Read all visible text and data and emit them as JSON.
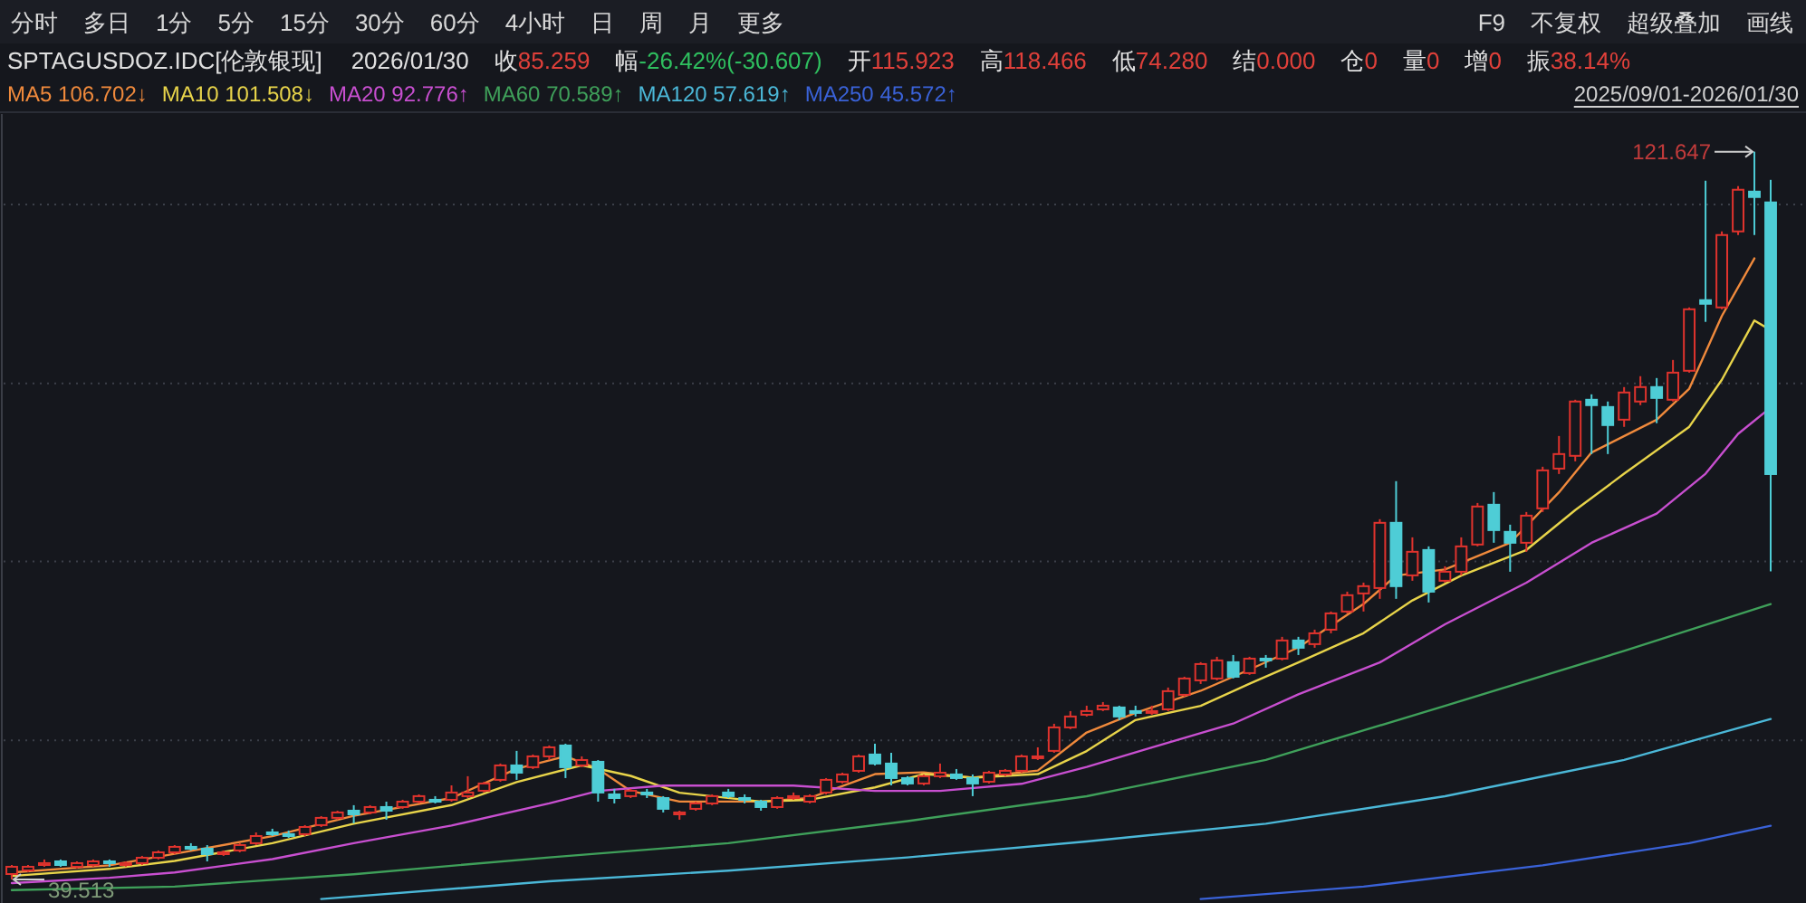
{
  "chart_data": {
    "type": "candlestick",
    "title": "SPTAGUSDOZ.IDC[伦敦银现]",
    "subtitle": "2026/01/30 收85.259 幅-26.42%(-30.607) 开115.923 高118.466 低74.280 结0.000 仓0 量0 增0 振38.14%",
    "annotations": [
      "分时 多日 1分 5分 15分 30分 60分 4小时 日 周 月 更多",
      "F9 不复权 超级叠加 画线",
      "2025/09/01-2026/01/30",
      "121.647",
      "39.513"
    ],
    "categories": [
      null,
      null,
      null,
      null,
      null,
      null,
      null,
      null,
      null,
      null,
      null,
      null,
      null,
      null,
      null,
      null,
      null,
      null,
      null,
      null,
      null,
      null,
      null,
      null,
      null,
      null,
      null,
      null,
      null,
      null,
      null,
      null,
      null,
      null,
      null,
      null,
      null,
      null,
      null,
      null,
      null,
      null,
      null,
      null,
      null,
      null,
      null,
      null,
      null,
      null,
      null,
      null,
      null,
      null,
      null,
      null,
      null,
      null,
      null,
      null,
      null,
      null,
      null,
      null,
      null,
      null,
      null,
      null,
      null,
      null,
      null,
      null,
      null,
      null,
      null,
      null,
      null,
      null,
      null,
      null,
      null,
      null,
      null,
      null,
      null,
      null,
      null,
      null,
      null,
      null,
      null,
      null,
      null,
      null,
      null,
      null,
      null,
      null,
      null,
      null,
      null,
      null,
      null,
      null,
      null,
      null,
      null,
      null,
      null
    ],
    "ohlc": [
      [
        40.12,
        41.14,
        39.513,
        40.94
      ],
      [
        40.53,
        41.14,
        40.33,
        40.94
      ],
      [
        41.14,
        41.76,
        40.94,
        41.35
      ],
      [
        41.55,
        41.76,
        40.94,
        41.14
      ],
      [
        40.94,
        41.55,
        40.74,
        41.35
      ],
      [
        41.14,
        41.76,
        40.94,
        41.55
      ],
      [
        41.55,
        41.76,
        40.94,
        41.35
      ],
      [
        41.14,
        41.55,
        40.94,
        41.35
      ],
      [
        41.35,
        42.17,
        41.14,
        41.96
      ],
      [
        41.96,
        42.78,
        41.76,
        42.57
      ],
      [
        42.57,
        43.39,
        42.37,
        43.19
      ],
      [
        43.19,
        43.6,
        42.78,
        42.98
      ],
      [
        42.98,
        43.39,
        41.55,
        42.37
      ],
      [
        42.37,
        42.78,
        42.17,
        42.57
      ],
      [
        42.78,
        43.6,
        42.57,
        43.39
      ],
      [
        43.6,
        44.82,
        43.39,
        44.41
      ],
      [
        44.82,
        45.23,
        44.41,
        44.62
      ],
      [
        44.62,
        45.03,
        44.21,
        44.41
      ],
      [
        44.62,
        45.64,
        44.41,
        45.43
      ],
      [
        45.64,
        46.66,
        45.43,
        46.46
      ],
      [
        46.46,
        47.27,
        46.25,
        47.07
      ],
      [
        47.27,
        47.89,
        45.84,
        46.86
      ],
      [
        47.07,
        47.89,
        46.86,
        47.68
      ],
      [
        47.68,
        48.29,
        46.25,
        47.27
      ],
      [
        47.68,
        48.5,
        47.48,
        48.29
      ],
      [
        48.29,
        49.11,
        48.09,
        48.91
      ],
      [
        48.5,
        48.91,
        48.09,
        48.29
      ],
      [
        48.5,
        50.13,
        48.29,
        49.32
      ],
      [
        48.91,
        51.16,
        48.7,
        49.32
      ],
      [
        49.52,
        50.54,
        49.32,
        50.34
      ],
      [
        50.75,
        52.59,
        50.54,
        52.38
      ],
      [
        52.38,
        54.02,
        50.75,
        51.56
      ],
      [
        52.18,
        53.61,
        51.97,
        53.4
      ],
      [
        53.4,
        54.63,
        52.99,
        54.42
      ],
      [
        54.63,
        54.83,
        50.95,
        52.18
      ],
      [
        52.38,
        53.4,
        52.18,
        52.99
      ],
      [
        52.79,
        52.99,
        48.29,
        49.32
      ],
      [
        49.11,
        49.73,
        48.09,
        48.7
      ],
      [
        48.91,
        49.73,
        48.7,
        49.52
      ],
      [
        49.32,
        49.73,
        48.7,
        49.11
      ],
      [
        48.7,
        48.91,
        47.07,
        47.48
      ],
      [
        46.86,
        47.27,
        46.25,
        47.07
      ],
      [
        47.48,
        48.29,
        47.27,
        48.09
      ],
      [
        48.09,
        49.11,
        47.89,
        48.91
      ],
      [
        49.32,
        49.73,
        48.7,
        48.91
      ],
      [
        48.7,
        49.11,
        48.09,
        48.5
      ],
      [
        48.29,
        48.5,
        47.27,
        47.68
      ],
      [
        47.68,
        48.91,
        47.48,
        48.7
      ],
      [
        48.7,
        49.32,
        48.5,
        48.91
      ],
      [
        48.29,
        49.11,
        48.09,
        48.91
      ],
      [
        49.32,
        50.95,
        49.11,
        50.75
      ],
      [
        50.54,
        51.56,
        50.34,
        51.36
      ],
      [
        51.77,
        53.61,
        51.56,
        53.4
      ],
      [
        53.61,
        54.83,
        52.38,
        52.59
      ],
      [
        52.59,
        53.81,
        50.13,
        50.95
      ],
      [
        50.95,
        51.16,
        50.13,
        50.34
      ],
      [
        50.34,
        51.36,
        50.13,
        51.16
      ],
      [
        51.16,
        52.59,
        50.95,
        51.56
      ],
      [
        51.36,
        51.97,
        50.75,
        50.95
      ],
      [
        50.95,
        51.36,
        48.91,
        50.34
      ],
      [
        50.54,
        51.77,
        50.34,
        51.56
      ],
      [
        51.36,
        51.97,
        51.16,
        51.77
      ],
      [
        51.77,
        53.61,
        51.56,
        53.4
      ],
      [
        53.2,
        54.42,
        52.99,
        53.4
      ],
      [
        54.02,
        57.08,
        53.81,
        56.67
      ],
      [
        56.67,
        58.51,
        56.47,
        57.9
      ],
      [
        58.1,
        59.12,
        57.9,
        58.51
      ],
      [
        58.71,
        59.53,
        58.51,
        59.12
      ],
      [
        58.92,
        59.12,
        57.49,
        57.9
      ],
      [
        58.51,
        59.12,
        57.9,
        58.31
      ],
      [
        58.31,
        59.12,
        58.1,
        58.51
      ],
      [
        58.71,
        61.17,
        58.51,
        60.76
      ],
      [
        60.35,
        62.39,
        60.14,
        62.19
      ],
      [
        61.98,
        64.03,
        61.57,
        63.82
      ],
      [
        62.19,
        64.64,
        61.98,
        64.23
      ],
      [
        64.03,
        64.84,
        62.19,
        62.39
      ],
      [
        62.8,
        64.64,
        62.6,
        64.43
      ],
      [
        64.43,
        64.84,
        63.41,
        64.23
      ],
      [
        64.43,
        66.89,
        64.23,
        66.48
      ],
      [
        66.48,
        66.89,
        64.84,
        65.66
      ],
      [
        66.07,
        67.7,
        65.66,
        67.29
      ],
      [
        67.7,
        69.75,
        67.29,
        69.54
      ],
      [
        69.75,
        71.99,
        69.54,
        71.59
      ],
      [
        71.79,
        73.01,
        69.75,
        72.61
      ],
      [
        72.4,
        80.17,
        71.18,
        79.76
      ],
      [
        79.76,
        84.46,
        71.18,
        72.61
      ],
      [
        73.83,
        78.12,
        73.22,
        76.49
      ],
      [
        76.69,
        77.1,
        70.77,
        71.99
      ],
      [
        73.22,
        74.85,
        73.01,
        74.24
      ],
      [
        74.24,
        78.12,
        73.83,
        77.1
      ],
      [
        77.31,
        82.0,
        77.1,
        81.6
      ],
      [
        81.8,
        83.23,
        77.51,
        78.94
      ],
      [
        78.74,
        79.55,
        74.24,
        77.51
      ],
      [
        77.51,
        80.98,
        76.49,
        80.57
      ],
      [
        81.39,
        86.09,
        80.98,
        85.68
      ],
      [
        85.88,
        89.56,
        85.27,
        87.52
      ],
      [
        87.32,
        93.65,
        86.7,
        93.45
      ],
      [
        93.65,
        94.26,
        87.52,
        93.04
      ],
      [
        92.83,
        93.45,
        87.52,
        90.79
      ],
      [
        91.4,
        95.08,
        90.59,
        94.47
      ],
      [
        93.45,
        96.31,
        93.04,
        95.08
      ],
      [
        95.08,
        96.1,
        91.0,
        93.85
      ],
      [
        93.65,
        98.14,
        93.45,
        96.71
      ],
      [
        96.92,
        104.07,
        96.71,
        103.86
      ],
      [
        104.89,
        118.37,
        102.44,
        104.48
      ],
      [
        104.07,
        112.65,
        103.86,
        112.24
      ],
      [
        112.65,
        117.76,
        112.24,
        117.35
      ],
      [
        117.14,
        121.647,
        112.24,
        116.53
      ],
      [
        115.923,
        118.466,
        74.28,
        85.259
      ]
    ],
    "series": [
      {
        "name": "MA5 106.702↓",
        "type": "line",
        "color": "#f08a3c",
        "values": [
          40.3,
          null,
          null,
          null,
          null,
          null,
          41.1,
          null,
          null,
          null,
          42.4,
          null,
          null,
          null,
          null,
          null,
          44.4,
          null,
          null,
          null,
          null,
          46.7,
          null,
          null,
          null,
          null,
          null,
          48.7,
          null,
          null,
          null,
          52.0,
          null,
          null,
          53.4,
          null,
          52.0,
          null,
          49.5,
          null,
          null,
          48.3,
          null,
          null,
          null,
          null,
          48.3,
          null,
          null,
          48.7,
          null,
          null,
          null,
          51.4,
          null,
          null,
          51.6,
          null,
          null,
          51.0,
          null,
          null,
          null,
          51.8,
          null,
          null,
          56.1,
          null,
          null,
          58.3,
          null,
          null,
          null,
          60.8,
          null,
          null,
          63.2,
          null,
          null,
          65.7,
          null,
          null,
          null,
          70.6,
          null,
          73.8,
          null,
          null,
          74.5,
          null,
          null,
          null,
          77.5,
          null,
          null,
          83.2,
          null,
          87.7,
          null,
          null,
          null,
          91.4,
          null,
          94.9,
          null,
          103.1,
          null,
          109.6,
          null
        ]
      },
      {
        "name": "MA10 101.508↓",
        "type": "line",
        "color": "#e8d44a",
        "values": [
          39.9,
          null,
          null,
          null,
          null,
          null,
          40.7,
          null,
          null,
          null,
          41.6,
          null,
          null,
          null,
          null,
          null,
          43.6,
          null,
          null,
          null,
          null,
          45.8,
          null,
          null,
          null,
          null,
          null,
          47.9,
          null,
          null,
          null,
          50.5,
          null,
          null,
          null,
          52.4,
          null,
          null,
          51.2,
          null,
          null,
          49.3,
          null,
          null,
          null,
          null,
          48.3,
          null,
          null,
          48.5,
          null,
          null,
          null,
          49.9,
          null,
          null,
          51.4,
          null,
          null,
          51.0,
          null,
          null,
          null,
          51.4,
          null,
          null,
          54.0,
          null,
          null,
          57.5,
          null,
          null,
          null,
          59.1,
          null,
          null,
          61.6,
          null,
          null,
          64.0,
          null,
          null,
          null,
          67.3,
          null,
          null,
          71.0,
          null,
          null,
          73.8,
          null,
          null,
          null,
          76.7,
          null,
          null,
          81.2,
          null,
          null,
          85.3,
          null,
          null,
          null,
          90.6,
          null,
          95.9,
          null,
          102.6,
          101.508
        ]
      },
      {
        "name": "MA20 92.776↑",
        "type": "line",
        "color": "#c84fd0",
        "values": [
          39.1,
          null,
          null,
          null,
          null,
          null,
          39.7,
          null,
          null,
          null,
          40.3,
          null,
          null,
          null,
          null,
          null,
          41.8,
          null,
          null,
          null,
          null,
          43.6,
          null,
          null,
          null,
          null,
          null,
          45.6,
          null,
          null,
          null,
          null,
          null,
          48.1,
          null,
          null,
          49.5,
          null,
          null,
          null,
          50.1,
          null,
          null,
          null,
          null,
          null,
          null,
          null,
          50.1,
          null,
          null,
          null,
          null,
          49.5,
          null,
          null,
          null,
          49.5,
          null,
          null,
          null,
          null,
          50.3,
          null,
          null,
          null,
          52.2,
          null,
          null,
          null,
          54.4,
          null,
          null,
          null,
          null,
          57.1,
          null,
          null,
          null,
          60.4,
          null,
          null,
          null,
          null,
          64.0,
          null,
          null,
          null,
          68.3,
          null,
          null,
          null,
          null,
          73.0,
          null,
          null,
          null,
          77.5,
          null,
          null,
          null,
          80.8,
          null,
          null,
          85.3,
          null,
          89.8,
          null,
          92.776
        ]
      },
      {
        "name": "MA60 70.589↑",
        "type": "line",
        "color": "#3fa05a",
        "values": [
          38.3,
          null,
          null,
          null,
          null,
          null,
          null,
          null,
          null,
          null,
          38.7,
          null,
          null,
          null,
          null,
          null,
          null,
          null,
          null,
          null,
          null,
          40.1,
          null,
          null,
          null,
          null,
          null,
          null,
          null,
          null,
          null,
          null,
          null,
          42.0,
          null,
          null,
          null,
          null,
          null,
          null,
          null,
          null,
          null,
          null,
          43.6,
          null,
          null,
          null,
          null,
          null,
          null,
          null,
          null,
          null,
          null,
          46.1,
          null,
          null,
          null,
          null,
          null,
          null,
          null,
          null,
          null,
          null,
          48.9,
          null,
          null,
          null,
          null,
          null,
          null,
          null,
          null,
          null,
          null,
          53.0,
          null,
          null,
          null,
          null,
          null,
          null,
          null,
          null,
          null,
          null,
          59.1,
          null,
          null,
          null,
          null,
          null,
          null,
          null,
          null,
          null,
          null,
          65.3,
          null,
          null,
          null,
          null,
          null,
          null,
          null,
          null,
          70.589
        ]
      },
      {
        "name": "MA120 57.619↑",
        "type": "line",
        "color": "#4bb8d8",
        "values": [
          null,
          null,
          null,
          null,
          null,
          null,
          null,
          null,
          null,
          null,
          null,
          null,
          null,
          null,
          null,
          null,
          null,
          null,
          null,
          37.3,
          null,
          null,
          null,
          null,
          null,
          null,
          null,
          null,
          null,
          null,
          null,
          null,
          null,
          39.3,
          null,
          null,
          null,
          null,
          null,
          null,
          null,
          null,
          null,
          null,
          40.5,
          null,
          null,
          null,
          null,
          null,
          null,
          null,
          null,
          null,
          null,
          42.0,
          null,
          null,
          null,
          null,
          null,
          null,
          null,
          null,
          null,
          null,
          43.8,
          null,
          null,
          null,
          null,
          null,
          null,
          null,
          null,
          null,
          null,
          45.8,
          null,
          null,
          null,
          null,
          null,
          null,
          null,
          null,
          null,
          null,
          48.9,
          null,
          null,
          null,
          null,
          null,
          null,
          null,
          null,
          null,
          null,
          53.0,
          null,
          null,
          null,
          null,
          null,
          null,
          null,
          null,
          57.619
        ]
      },
      {
        "name": "MA250 45.572↑",
        "type": "line",
        "color": "#3a62d8",
        "values": [
          null,
          null,
          null,
          null,
          null,
          null,
          null,
          null,
          null,
          null,
          null,
          null,
          null,
          null,
          null,
          null,
          null,
          null,
          null,
          null,
          null,
          null,
          null,
          null,
          null,
          null,
          null,
          null,
          null,
          null,
          null,
          null,
          null,
          null,
          null,
          null,
          null,
          null,
          null,
          null,
          null,
          null,
          null,
          null,
          null,
          null,
          null,
          null,
          null,
          null,
          null,
          null,
          null,
          null,
          null,
          null,
          null,
          null,
          null,
          null,
          null,
          null,
          null,
          null,
          null,
          null,
          null,
          null,
          null,
          null,
          null,
          null,
          null,
          37.3,
          null,
          null,
          null,
          null,
          null,
          null,
          null,
          null,
          null,
          38.7,
          null,
          null,
          null,
          null,
          null,
          null,
          null,
          null,
          null,
          null,
          41.1,
          null,
          null,
          null,
          null,
          null,
          null,
          null,
          null,
          43.6,
          null,
          null,
          null,
          null,
          45.572
        ]
      }
    ],
    "ylim": [
      37.26,
      125.9
    ],
    "yticks": [
      {
        "value": 55.2,
        "label": null
      },
      {
        "value": 75.4,
        "label": null
      },
      {
        "value": 95.5,
        "label": null
      },
      {
        "value": 115.7,
        "label": null
      }
    ],
    "grid": "y",
    "legend": "top left",
    "tick_labels": false
  }
}
